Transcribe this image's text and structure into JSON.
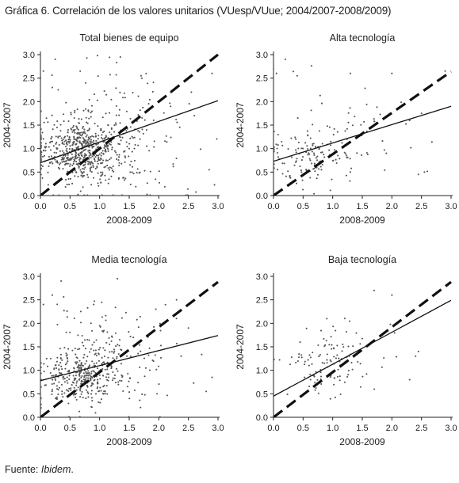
{
  "title": "Gráfica 6. Correlación de los valores unitarios (VUesp/VUue; 2004/2007-2008/2009)",
  "source_prefix": "Fuente: ",
  "source_italic": "Ibidem",
  "source_suffix": ".",
  "colors": {
    "points": "#555555",
    "lines": "#111111",
    "axes": "#222222"
  },
  "chart_data": [
    {
      "type": "scatter",
      "title": "Total bienes de equipo",
      "xlabel": "2008-2009",
      "ylabel": "2004-2007",
      "xlim": [
        0,
        3
      ],
      "ylim": [
        0,
        3
      ],
      "xticks": [
        "0.0",
        "0.5",
        "1.0",
        "1.5",
        "2.0",
        "2.5",
        "3.0"
      ],
      "yticks": [
        "0.0",
        "0.5",
        "1.0",
        "1.5",
        "2.0",
        "2.5",
        "3.0"
      ],
      "fit_line": {
        "intercept": 0.7,
        "slope": 0.44
      },
      "reference_line": {
        "intercept": 0,
        "slope": 1,
        "style": "dashed"
      },
      "points": {
        "count": 760,
        "clusters": [
          {
            "weight": 0.72,
            "cx": 0.7,
            "cy": 0.95,
            "sx": 0.38,
            "sy": 0.32
          },
          {
            "weight": 0.18,
            "cx": 1.15,
            "cy": 1.6,
            "sx": 0.55,
            "sy": 0.6
          },
          {
            "weight": 0.1,
            "cx": 1.6,
            "cy": 0.9,
            "sx": 0.7,
            "sy": 0.7
          }
        ],
        "extra": [
          [
            0.25,
            2.9
          ],
          [
            1.35,
            2.95
          ],
          [
            0.2,
            2.3
          ],
          [
            0.3,
            2.25
          ],
          [
            1.7,
            2.55
          ],
          [
            2.55,
            2.2
          ],
          [
            2.2,
            1.9
          ],
          [
            2.85,
            0.55
          ],
          [
            2.9,
            2.6
          ],
          [
            0.05,
            2.65
          ],
          [
            0.0,
            2.5
          ],
          [
            2.6,
            1.7
          ]
        ]
      }
    },
    {
      "type": "scatter",
      "title": "Alta tecnología",
      "xlabel": "2008-2009",
      "ylabel": "2004-2007",
      "xlim": [
        0,
        3
      ],
      "ylim": [
        0,
        3
      ],
      "xticks": [
        "0.0",
        "0.5",
        "1.0",
        "1.5",
        "2.0",
        "2.5",
        "3.0"
      ],
      "yticks": [
        "0.0",
        "0.5",
        "1.0",
        "1.5",
        "2.0",
        "2.5",
        "3.0"
      ],
      "fit_line": {
        "intercept": 0.73,
        "slope": 0.39
      },
      "reference_line": {
        "intercept": 0,
        "slope": 0.88,
        "style": "dashed"
      },
      "points": {
        "count": 175,
        "clusters": [
          {
            "weight": 0.65,
            "cx": 0.6,
            "cy": 0.8,
            "sx": 0.35,
            "sy": 0.3
          },
          {
            "weight": 0.2,
            "cx": 1.2,
            "cy": 1.5,
            "sx": 0.5,
            "sy": 0.5
          },
          {
            "weight": 0.15,
            "cx": 1.8,
            "cy": 1.1,
            "sx": 0.6,
            "sy": 0.5
          }
        ],
        "extra": [
          [
            0.2,
            2.9
          ],
          [
            0.0,
            2.7
          ],
          [
            0.05,
            2.6
          ],
          [
            0.4,
            2.55
          ],
          [
            1.3,
            2.6
          ],
          [
            2.0,
            2.6
          ],
          [
            2.9,
            2.65
          ],
          [
            2.55,
            0.5
          ],
          [
            2.45,
            0.45
          ],
          [
            2.3,
            1.6
          ],
          [
            2.5,
            1.75
          ]
        ]
      }
    },
    {
      "type": "scatter",
      "title": "Media tecnología",
      "xlabel": "2008-2009",
      "ylabel": "2004-2007",
      "xlim": [
        0,
        3
      ],
      "ylim": [
        0,
        3
      ],
      "xticks": [
        "0.0",
        "0.5",
        "1.0",
        "1.5",
        "2.0",
        "2.5",
        "3.0"
      ],
      "yticks": [
        "0.0",
        "0.5",
        "1.0",
        "1.5",
        "2.0",
        "2.5",
        "3.0"
      ],
      "fit_line": {
        "intercept": 0.78,
        "slope": 0.32
      },
      "reference_line": {
        "intercept": 0,
        "slope": 0.96,
        "style": "dashed"
      },
      "points": {
        "count": 470,
        "clusters": [
          {
            "weight": 0.72,
            "cx": 0.65,
            "cy": 0.85,
            "sx": 0.35,
            "sy": 0.3
          },
          {
            "weight": 0.18,
            "cx": 1.1,
            "cy": 1.5,
            "sx": 0.5,
            "sy": 0.55
          },
          {
            "weight": 0.1,
            "cx": 1.5,
            "cy": 1.0,
            "sx": 0.6,
            "sy": 0.6
          }
        ],
        "extra": [
          [
            0.35,
            2.9
          ],
          [
            1.3,
            2.95
          ],
          [
            0.2,
            2.6
          ],
          [
            0.0,
            2.45
          ],
          [
            0.05,
            2.4
          ],
          [
            2.3,
            2.5
          ],
          [
            2.8,
            0.55
          ],
          [
            2.9,
            0.85
          ],
          [
            2.5,
            1.9
          ],
          [
            0.9,
            2.4
          ],
          [
            1.95,
            2.3
          ]
        ]
      }
    },
    {
      "type": "scatter",
      "title": "Baja tecnología",
      "xlabel": "2008-2009",
      "ylabel": "2004-2007",
      "xlim": [
        0,
        3
      ],
      "ylim": [
        0,
        3
      ],
      "xticks": [
        "0.0",
        "0.5",
        "1.0",
        "1.5",
        "2.0",
        "2.5",
        "3.0"
      ],
      "yticks": [
        "0.0",
        "0.5",
        "1.0",
        "1.5",
        "2.0",
        "2.5",
        "3.0"
      ],
      "fit_line": {
        "intercept": 0.45,
        "slope": 0.68
      },
      "reference_line": {
        "intercept": 0,
        "slope": 0.96,
        "style": "dashed"
      },
      "points": {
        "count": 120,
        "clusters": [
          {
            "weight": 0.8,
            "cx": 0.95,
            "cy": 1.05,
            "sx": 0.35,
            "sy": 0.3
          },
          {
            "weight": 0.2,
            "cx": 1.3,
            "cy": 1.5,
            "sx": 0.4,
            "sy": 0.4
          }
        ],
        "extra": [
          [
            1.7,
            2.7
          ],
          [
            2.0,
            2.6
          ],
          [
            2.1,
            2.0
          ],
          [
            2.3,
            0.8
          ],
          [
            2.4,
            1.3
          ],
          [
            0.9,
            2.1
          ],
          [
            0.45,
            1.6
          ],
          [
            2.45,
            1.4
          ]
        ]
      }
    }
  ]
}
